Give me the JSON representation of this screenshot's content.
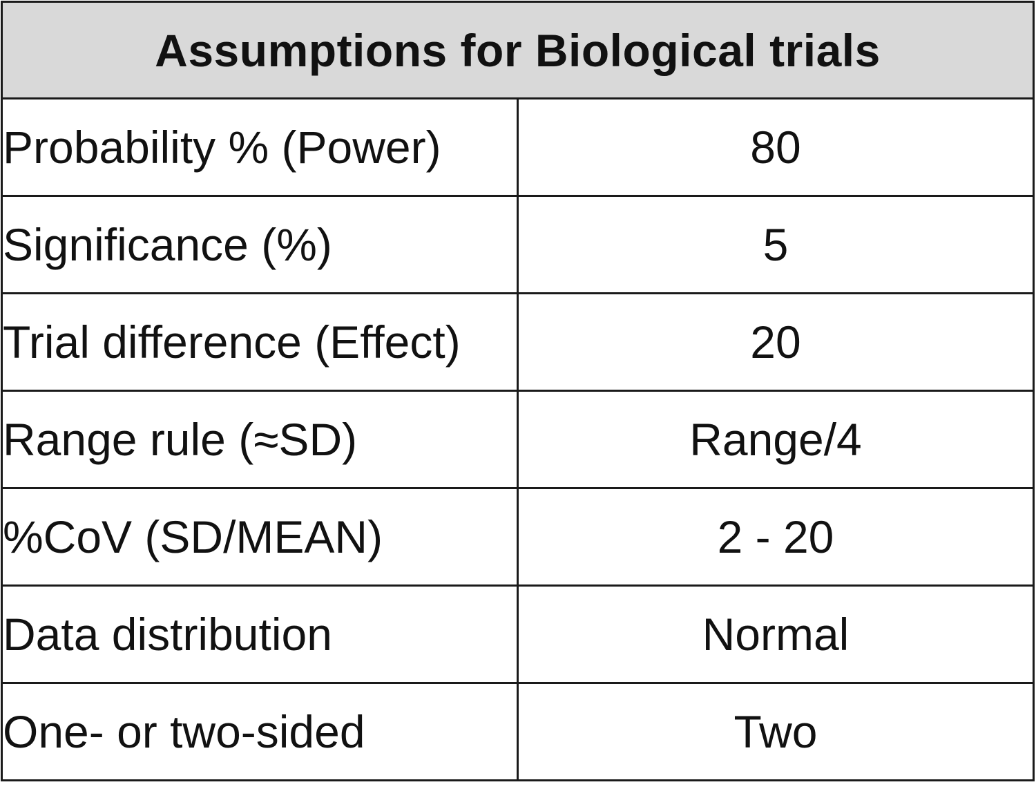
{
  "table": {
    "title": "Assumptions for Biological trials",
    "rows": [
      {
        "parameter": "Probability % (Power)",
        "value": "80"
      },
      {
        "parameter": "Significance (%)",
        "value": "5"
      },
      {
        "parameter": "Trial difference (Effect)",
        "value": "20"
      },
      {
        "parameter": "Range rule (≈SD)",
        "value": "Range/4"
      },
      {
        "parameter": "%CoV (SD/MEAN)",
        "value": "2 - 20"
      },
      {
        "parameter": "Data distribution",
        "value": "Normal"
      },
      {
        "parameter": "One- or two-sided",
        "value": "Two"
      }
    ]
  },
  "colors": {
    "header_background": "#d9d9d9",
    "border": "#1a1a1a",
    "text": "#111111"
  }
}
